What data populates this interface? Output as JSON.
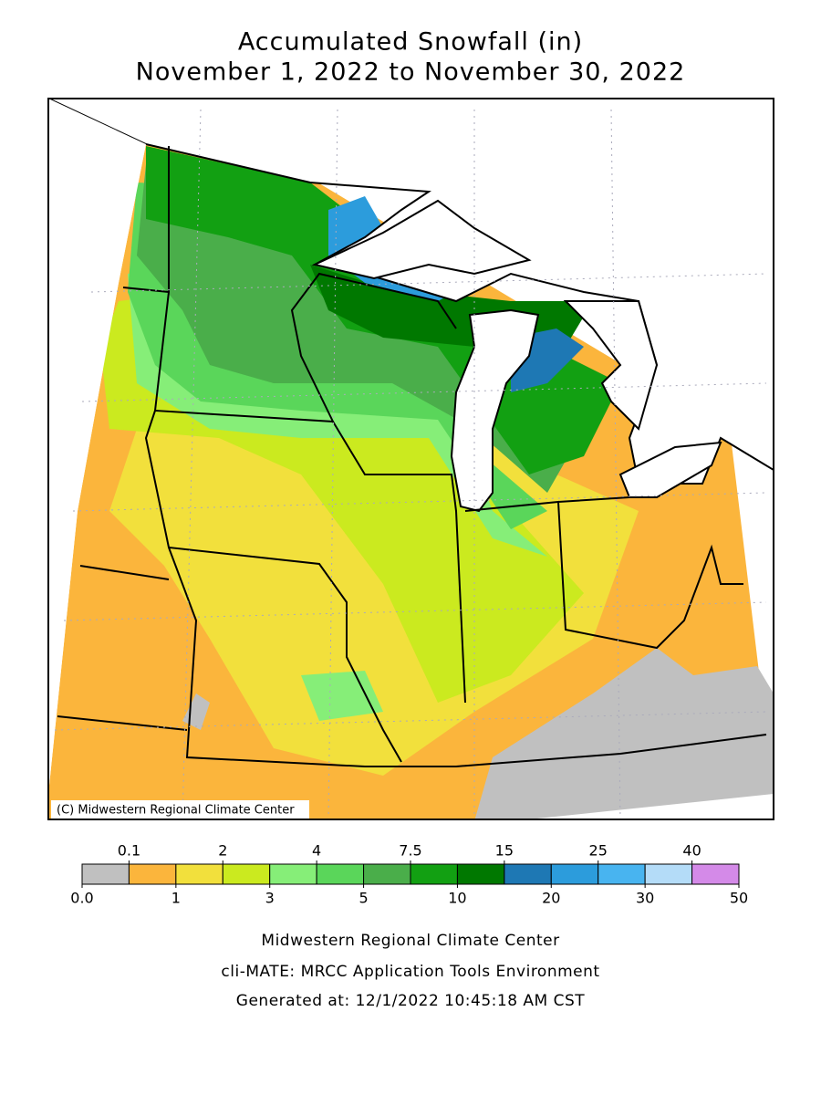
{
  "title": [
    "Accumulated Snowfall (in)",
    "November 1, 2022 to November 30, 2022"
  ],
  "map": {
    "credit": "(C) Midwestern Regional Climate Center"
  },
  "legend": {
    "levels": [
      {
        "value": 0,
        "label": "0.0"
      },
      0.1,
      1,
      2,
      3,
      4,
      5,
      7.5,
      10,
      15,
      20,
      25,
      30,
      40,
      50
    ],
    "colors": [
      "#c0c0c0",
      "#fbb53c",
      "#f2e03c",
      "#cbea1f",
      "#86ee78",
      "#5ad65a",
      "#4aae4a",
      "#12a012",
      "#007800",
      "#1e78b4",
      "#2c9cdc",
      "#48b4f0",
      "#b4dcf8",
      "#d48ae8"
    ]
  },
  "footer": [
    "Midwestern Regional Climate Center",
    "cli-MATE: MRCC Application Tools Environment",
    "Generated at: 12/1/2022 10:45:18 AM CST"
  ]
}
